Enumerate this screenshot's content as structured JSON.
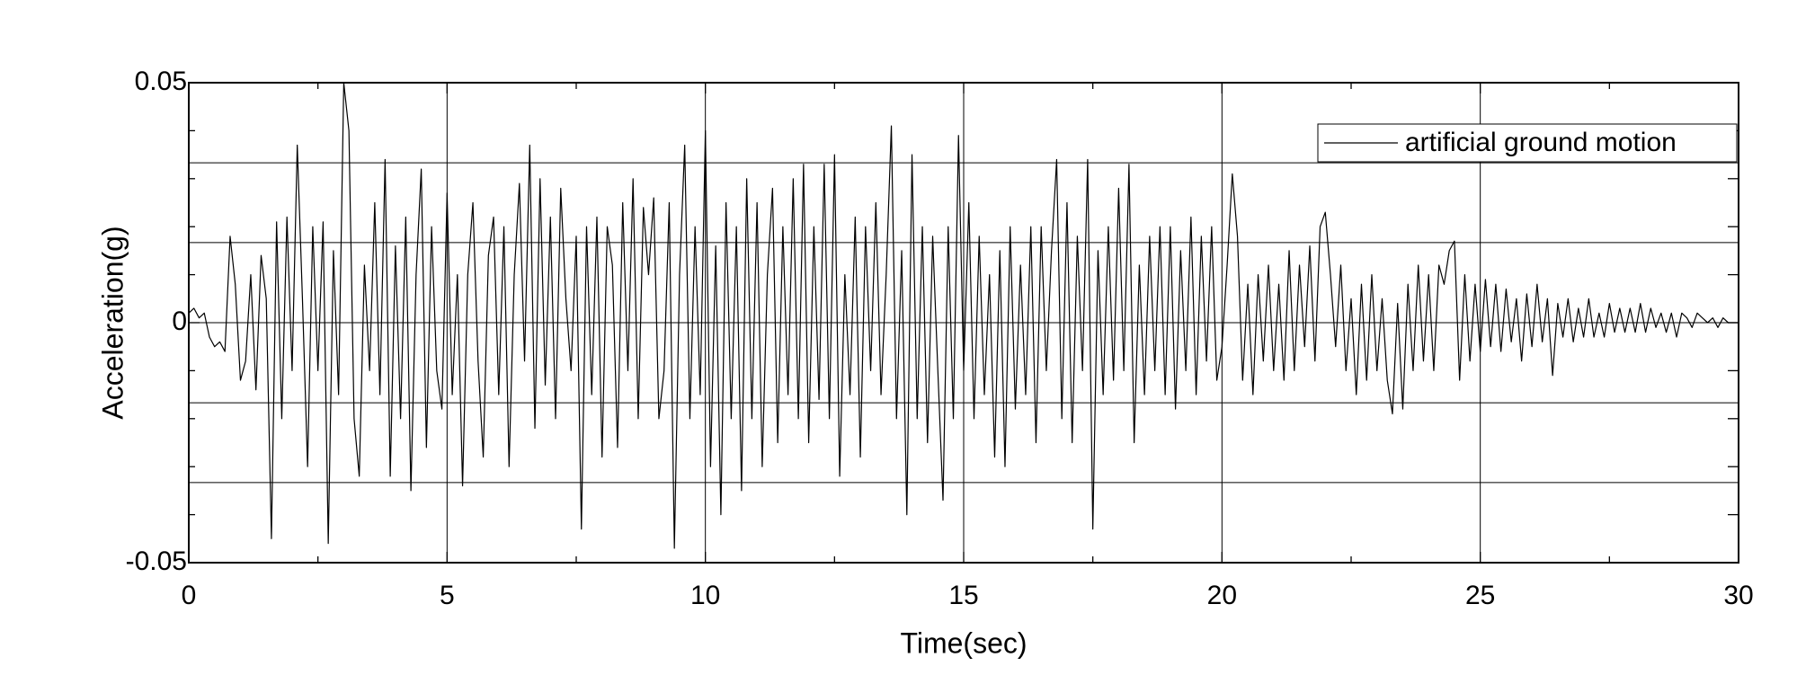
{
  "chart_data": {
    "type": "line",
    "xlabel": "Time(sec)",
    "ylabel": "Acceleration(g)",
    "xlim": [
      0,
      30
    ],
    "xticks": [
      0,
      5,
      10,
      15,
      20,
      25,
      30
    ],
    "xminorticks": [
      2.5,
      7.5,
      12.5,
      17.5,
      22.5,
      27.5
    ],
    "ylim": [
      -0.05,
      0.05
    ],
    "yticks": [
      -0.05,
      0,
      0.05
    ],
    "yminorticks": [
      -0.04,
      -0.03,
      -0.02,
      -0.01,
      0.01,
      0.02,
      0.03,
      0.04
    ],
    "ygrid": [
      -0.0333,
      -0.0167,
      0.0167,
      0.0333
    ],
    "grid": true,
    "legend": "upper right",
    "x": [
      0,
      0.1,
      0.2,
      0.3,
      0.4,
      0.5,
      0.6,
      0.7,
      0.8,
      0.9,
      1,
      1.1,
      1.2,
      1.3,
      1.4,
      1.5,
      1.6,
      1.7,
      1.8,
      1.9,
      2,
      2.1,
      2.2,
      2.3,
      2.4,
      2.5,
      2.6,
      2.7,
      2.8,
      2.9,
      3,
      3.1,
      3.2,
      3.3,
      3.4,
      3.5,
      3.6,
      3.7,
      3.8,
      3.9,
      4,
      4.1,
      4.2,
      4.3,
      4.4,
      4.5,
      4.6,
      4.7,
      4.8,
      4.9,
      5,
      5.1,
      5.2,
      5.3,
      5.4,
      5.5,
      5.6,
      5.7,
      5.8,
      5.9,
      6,
      6.1,
      6.2,
      6.3,
      6.4,
      6.5,
      6.6,
      6.7,
      6.8,
      6.9,
      7,
      7.1,
      7.2,
      7.3,
      7.4,
      7.5,
      7.6,
      7.7,
      7.8,
      7.9,
      8,
      8.1,
      8.2,
      8.3,
      8.4,
      8.5,
      8.6,
      8.7,
      8.8,
      8.9,
      9,
      9.1,
      9.2,
      9.3,
      9.4,
      9.5,
      9.6,
      9.7,
      9.8,
      9.9,
      10,
      10.1,
      10.2,
      10.3,
      10.4,
      10.5,
      10.6,
      10.7,
      10.8,
      10.9,
      11,
      11.1,
      11.2,
      11.3,
      11.4,
      11.5,
      11.6,
      11.7,
      11.8,
      11.9,
      12,
      12.1,
      12.2,
      12.3,
      12.4,
      12.5,
      12.6,
      12.7,
      12.8,
      12.9,
      13,
      13.1,
      13.2,
      13.3,
      13.4,
      13.5,
      13.6,
      13.7,
      13.8,
      13.9,
      14,
      14.1,
      14.2,
      14.3,
      14.4,
      14.5,
      14.6,
      14.7,
      14.8,
      14.9,
      15,
      15.1,
      15.2,
      15.3,
      15.4,
      15.5,
      15.6,
      15.7,
      15.8,
      15.9,
      16,
      16.1,
      16.2,
      16.3,
      16.4,
      16.5,
      16.6,
      16.7,
      16.8,
      16.9,
      17,
      17.1,
      17.2,
      17.3,
      17.4,
      17.5,
      17.6,
      17.7,
      17.8,
      17.9,
      18,
      18.1,
      18.2,
      18.3,
      18.4,
      18.5,
      18.6,
      18.7,
      18.8,
      18.9,
      19,
      19.1,
      19.2,
      19.3,
      19.4,
      19.5,
      19.6,
      19.7,
      19.8,
      19.9,
      20,
      20.1,
      20.2,
      20.3,
      20.4,
      20.5,
      20.6,
      20.7,
      20.8,
      20.9,
      21,
      21.1,
      21.2,
      21.3,
      21.4,
      21.5,
      21.6,
      21.7,
      21.8,
      21.9,
      22,
      22.1,
      22.2,
      22.3,
      22.4,
      22.5,
      22.6,
      22.7,
      22.8,
      22.9,
      23,
      23.1,
      23.2,
      23.3,
      23.4,
      23.5,
      23.6,
      23.7,
      23.8,
      23.9,
      24,
      24.1,
      24.2,
      24.3,
      24.4,
      24.5,
      24.6,
      24.7,
      24.8,
      24.9,
      25,
      25.1,
      25.2,
      25.3,
      25.4,
      25.5,
      25.6,
      25.7,
      25.8,
      25.9,
      26,
      26.1,
      26.2,
      26.3,
      26.4,
      26.5,
      26.6,
      26.7,
      26.8,
      26.9,
      27,
      27.1,
      27.2,
      27.3,
      27.4,
      27.5,
      27.6,
      27.7,
      27.8,
      27.9,
      28,
      28.1,
      28.2,
      28.3,
      28.4,
      28.5,
      28.6,
      28.7,
      28.8,
      28.9,
      29,
      29.1,
      29.2,
      29.3,
      29.4,
      29.5,
      29.6,
      29.7,
      29.8,
      29.9,
      30
    ],
    "series": [
      {
        "name": "artificial ground motion",
        "color": "#000000",
        "values": [
          0.002,
          0.003,
          0.001,
          0.002,
          -0.003,
          -0.005,
          -0.004,
          -0.006,
          0.018,
          0.008,
          -0.012,
          -0.008,
          0.01,
          -0.014,
          0.014,
          0.005,
          -0.045,
          0.021,
          -0.02,
          0.022,
          -0.01,
          0.037,
          0.005,
          -0.03,
          0.02,
          -0.01,
          0.021,
          -0.046,
          0.015,
          -0.015,
          0.05,
          0.04,
          -0.02,
          -0.032,
          0.012,
          -0.01,
          0.025,
          -0.015,
          0.034,
          -0.032,
          0.016,
          -0.02,
          0.022,
          -0.035,
          0.01,
          0.032,
          -0.026,
          0.02,
          -0.01,
          -0.018,
          0.027,
          -0.015,
          0.01,
          -0.034,
          0.01,
          0.025,
          -0.008,
          -0.028,
          0.014,
          0.022,
          -0.015,
          0.02,
          -0.03,
          0.01,
          0.029,
          -0.008,
          0.037,
          -0.022,
          0.03,
          -0.013,
          0.022,
          -0.02,
          0.028,
          0.005,
          -0.01,
          0.018,
          -0.043,
          0.02,
          -0.015,
          0.022,
          -0.028,
          0.02,
          0.012,
          -0.026,
          0.025,
          -0.01,
          0.03,
          -0.02,
          0.024,
          0.01,
          0.026,
          -0.02,
          -0.01,
          0.025,
          -0.047,
          0.01,
          0.037,
          -0.02,
          0.02,
          -0.015,
          0.04,
          -0.03,
          0.016,
          -0.04,
          0.025,
          -0.02,
          0.02,
          -0.035,
          0.03,
          -0.02,
          0.025,
          -0.03,
          0.01,
          0.028,
          -0.025,
          0.02,
          -0.015,
          0.03,
          -0.02,
          0.033,
          -0.025,
          0.02,
          -0.016,
          0.033,
          -0.02,
          0.035,
          -0.032,
          0.01,
          -0.015,
          0.022,
          -0.028,
          0.02,
          -0.01,
          0.025,
          -0.015,
          0.01,
          0.041,
          -0.02,
          0.015,
          -0.04,
          0.035,
          -0.02,
          0.02,
          -0.025,
          0.018,
          -0.01,
          -0.037,
          0.02,
          -0.02,
          0.039,
          -0.01,
          0.025,
          -0.02,
          0.018,
          -0.015,
          0.01,
          -0.028,
          0.015,
          -0.03,
          0.02,
          -0.018,
          0.012,
          -0.015,
          0.02,
          -0.025,
          0.02,
          -0.01,
          0.015,
          0.034,
          -0.02,
          0.025,
          -0.025,
          0.018,
          -0.01,
          0.034,
          -0.043,
          0.015,
          -0.015,
          0.02,
          -0.012,
          0.028,
          -0.01,
          0.033,
          -0.025,
          0.012,
          -0.015,
          0.018,
          -0.01,
          0.02,
          -0.015,
          0.02,
          -0.018,
          0.015,
          -0.01,
          0.022,
          -0.015,
          0.018,
          -0.008,
          0.02,
          -0.012,
          -0.005,
          0.012,
          0.031,
          0.018,
          -0.012,
          0.008,
          -0.015,
          0.01,
          -0.008,
          0.012,
          -0.01,
          0.008,
          -0.012,
          0.015,
          -0.01,
          0.012,
          -0.005,
          0.016,
          -0.008,
          0.02,
          0.023,
          0.01,
          -0.005,
          0.012,
          -0.01,
          0.005,
          -0.015,
          0.008,
          -0.012,
          0.01,
          -0.01,
          0.005,
          -0.012,
          -0.019,
          0.004,
          -0.018,
          0.008,
          -0.01,
          0.012,
          -0.008,
          0.01,
          -0.01,
          0.012,
          0.008,
          0.015,
          0.017,
          -0.012,
          0.01,
          -0.008,
          0.008,
          -0.006,
          0.009,
          -0.005,
          0.008,
          -0.006,
          0.007,
          -0.004,
          0.005,
          -0.008,
          0.006,
          -0.005,
          0.008,
          -0.004,
          0.005,
          -0.011,
          0.004,
          -0.003,
          0.005,
          -0.004,
          0.003,
          -0.003,
          0.005,
          -0.003,
          0.002,
          -0.003,
          0.004,
          -0.002,
          0.003,
          -0.002,
          0.003,
          -0.002,
          0.004,
          -0.002,
          0.003,
          -0.001,
          0.002,
          -0.002,
          0.002,
          -0.003,
          0.002,
          0.001,
          -0.001,
          0.002,
          0.001,
          0,
          0.001,
          -0.001,
          0.001,
          0,
          0,
          0
        ]
      }
    ]
  }
}
